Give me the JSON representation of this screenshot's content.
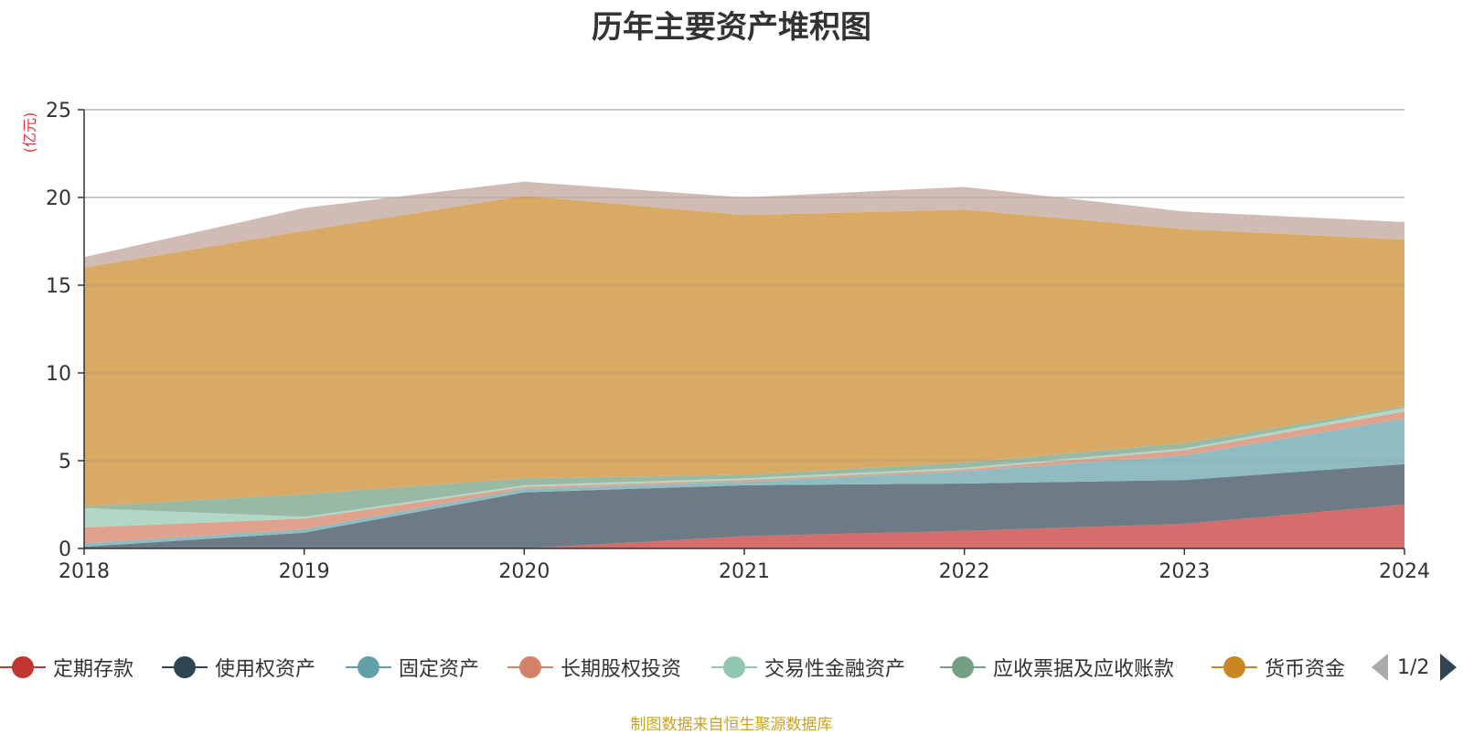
{
  "chart_data": {
    "type": "area",
    "stacked": true,
    "title": "历年主要资产堆积图",
    "ylabel": "(亿元)",
    "xlabel": "",
    "x": [
      "2018",
      "2019",
      "2020",
      "2021",
      "2022",
      "2023",
      "2024"
    ],
    "ylim": [
      0,
      25
    ],
    "yticks": [
      0,
      5,
      10,
      15,
      20,
      25
    ],
    "grid": true,
    "legend_position": "bottom",
    "series": [
      {
        "name": "定期存款",
        "color": "#c23531",
        "fill": "#d46d6b",
        "values": [
          0,
          0,
          0,
          0.7,
          1.0,
          1.4,
          2.5
        ]
      },
      {
        "name": "使用权资产",
        "color": "#2f4554",
        "fill": "#6d7b86",
        "values": [
          0.1,
          0.9,
          3.2,
          2.9,
          2.7,
          2.5,
          2.3
        ]
      },
      {
        "name": "固定资产",
        "color": "#61a0a8",
        "fill": "#8fbcc2",
        "values": [
          0.2,
          0.2,
          0.2,
          0.2,
          0.7,
          1.4,
          2.6
        ]
      },
      {
        "name": "长期股权投资",
        "color": "#d48265",
        "fill": "#e0a28c",
        "values": [
          0.9,
          0.6,
          0.1,
          0.1,
          0.1,
          0.3,
          0.4
        ]
      },
      {
        "name": "交易性金融资产",
        "color": "#91c7ae",
        "fill": "#b1d8c6",
        "values": [
          1.1,
          0.1,
          0.1,
          0.1,
          0.1,
          0.1,
          0.2
        ]
      },
      {
        "name": "应收票据及应收账款",
        "color": "#749f83",
        "fill": "#99b9a4",
        "values": [
          0.1,
          1.3,
          0.4,
          0.2,
          0.3,
          0.3,
          0.1
        ]
      },
      {
        "name": "货币资金",
        "color": "#ca8622",
        "fill": "#d9aa64",
        "values": [
          13.6,
          15.0,
          16.1,
          14.8,
          14.4,
          12.2,
          9.5
        ]
      },
      {
        "name": "",
        "color": "#bda29a",
        "fill": "#d0bbb5",
        "values": [
          0.6,
          1.3,
          0.8,
          1.0,
          1.3,
          1.0,
          1.0
        ]
      }
    ]
  },
  "legend": {
    "page_indicator": "1/2"
  },
  "source_note": "制图数据来自恒生聚源数据库"
}
